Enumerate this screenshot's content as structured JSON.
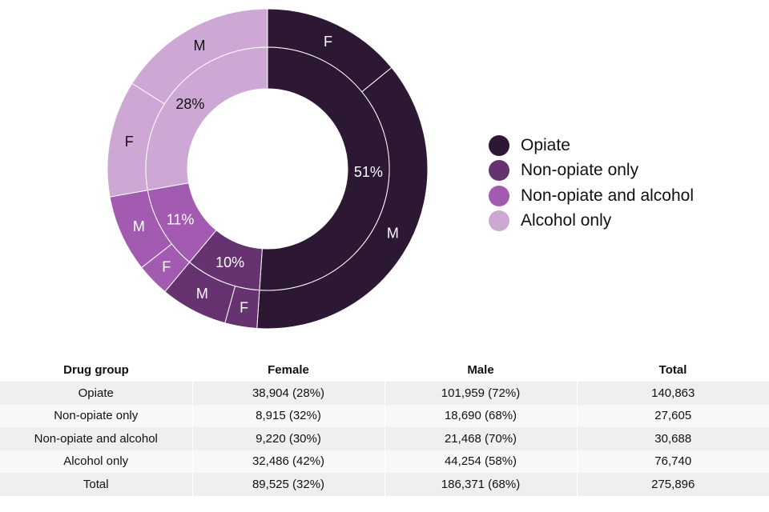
{
  "colors": {
    "opiate": "#2d1834",
    "non_opiate_only": "#663370",
    "non_opiate_and_alcohol": "#a25bb0",
    "alcohol_only": "#cda8d4",
    "white_text": "#ffffff",
    "dark_text": "#111111"
  },
  "chart_data": {
    "type": "pie",
    "subtype": "nested-donut",
    "inner_ring": [
      {
        "category": "Opiate",
        "value": 140863,
        "label": "51%",
        "color": "#2d1834"
      },
      {
        "category": "Non-opiate only",
        "value": 27605,
        "label": "10%",
        "color": "#663370"
      },
      {
        "category": "Non-opiate and alcohol",
        "value": 30688,
        "label": "11%",
        "color": "#a25bb0"
      },
      {
        "category": "Alcohol only",
        "value": 76740,
        "label": "28%",
        "color": "#cda8d4"
      }
    ],
    "outer_ring": [
      {
        "category": "Opiate",
        "sex": "F",
        "value": 38904,
        "color": "#2d1834"
      },
      {
        "category": "Opiate",
        "sex": "M",
        "value": 101959,
        "color": "#2d1834"
      },
      {
        "category": "Non-opiate only",
        "sex": "F",
        "value": 8915,
        "color": "#663370"
      },
      {
        "category": "Non-opiate only",
        "sex": "M",
        "value": 18690,
        "color": "#663370"
      },
      {
        "category": "Non-opiate and alcohol",
        "sex": "F",
        "value": 9220,
        "color": "#a25bb0"
      },
      {
        "category": "Non-opiate and alcohol",
        "sex": "M",
        "value": 21468,
        "color": "#a25bb0"
      },
      {
        "category": "Alcohol only",
        "sex": "F",
        "value": 32486,
        "color": "#cda8d4"
      },
      {
        "category": "Alcohol only",
        "sex": "M",
        "value": 44254,
        "color": "#cda8d4"
      }
    ],
    "legend_position": "right"
  },
  "legend": [
    {
      "label": "Opiate",
      "color": "#2d1834"
    },
    {
      "label": "Non-opiate only",
      "color": "#663370"
    },
    {
      "label": "Non-opiate and alcohol",
      "color": "#a25bb0"
    },
    {
      "label": "Alcohol only",
      "color": "#cda8d4"
    }
  ],
  "table": {
    "headers": [
      "Drug group",
      "Female",
      "Male",
      "Total"
    ],
    "rows": [
      [
        "Opiate",
        "38,904 (28%)",
        "101,959 (72%)",
        "140,863"
      ],
      [
        "Non-opiate only",
        "8,915 (32%)",
        "18,690 (68%)",
        "27,605"
      ],
      [
        "Non-opiate and alcohol",
        "9,220 (30%)",
        "21,468 (70%)",
        "30,688"
      ],
      [
        "Alcohol only",
        "32,486 (42%)",
        "44,254 (58%)",
        "76,740"
      ],
      [
        "Total",
        "89,525 (32%)",
        "186,371 (68%)",
        "275,896"
      ]
    ]
  }
}
